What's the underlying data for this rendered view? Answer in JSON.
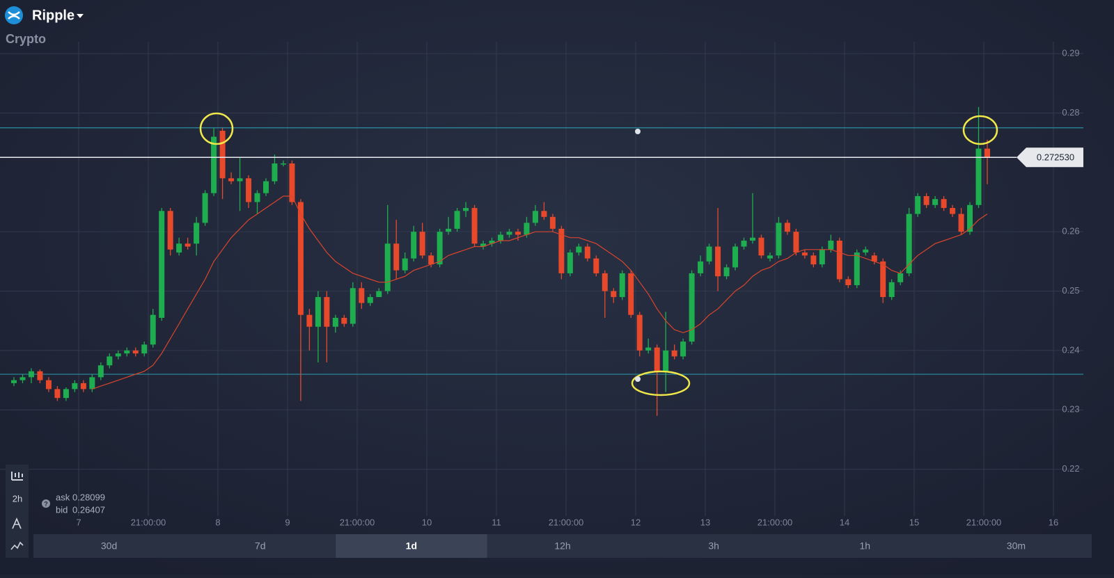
{
  "header": {
    "title": "Ripple",
    "category": "Crypto"
  },
  "chart_data": {
    "type": "candlestick",
    "open": [
      0.2345,
      0.235,
      0.2355,
      0.2365,
      0.235,
      0.2335,
      0.232,
      0.2335,
      0.2345,
      0.2335,
      0.2355,
      0.2375,
      0.239,
      0.2395,
      0.24,
      0.2395,
      0.241,
      0.2455,
      0.2635,
      0.2565,
      0.258,
      0.258,
      0.2615,
      0.2665,
      0.277,
      0.269,
      0.2685,
      0.269,
      0.265,
      0.2665,
      0.2685,
      0.2715,
      0.2715,
      0.265,
      0.246,
      0.244,
      0.249,
      0.244,
      0.2455,
      0.2445,
      0.2505,
      0.248,
      0.249,
      0.25,
      0.258,
      0.2535,
      0.2555,
      0.26,
      0.256,
      0.2545,
      0.26,
      0.2605,
      0.2635,
      0.264,
      0.2575,
      0.258,
      0.2585,
      0.2595,
      0.26,
      0.2595,
      0.2615,
      0.2635,
      0.2625,
      0.2605,
      0.253,
      0.2565,
      0.2575,
      0.2555,
      0.253,
      0.25,
      0.249,
      0.253,
      0.246,
      0.24,
      0.2405,
      0.2365,
      0.24,
      0.239,
      0.2415,
      0.253,
      0.255,
      0.2575,
      0.2525,
      0.254,
      0.2575,
      0.2585,
      0.259,
      0.2555,
      0.256,
      0.2615,
      0.26,
      0.2565,
      0.256,
      0.2545,
      0.257,
      0.2585,
      0.252,
      0.251,
      0.2565,
      0.256,
      0.255,
      0.249,
      0.2515,
      0.253,
      0.263,
      0.266,
      0.2645,
      0.2655,
      0.264,
      0.263,
      0.26,
      0.2645,
      0.274
    ],
    "high": [
      0.2355,
      0.236,
      0.237,
      0.2368,
      0.2355,
      0.234,
      0.2338,
      0.235,
      0.235,
      0.236,
      0.238,
      0.2395,
      0.24,
      0.2405,
      0.2405,
      0.2415,
      0.247,
      0.264,
      0.264,
      0.259,
      0.259,
      0.2625,
      0.267,
      0.2775,
      0.2775,
      0.27,
      0.2725,
      0.2695,
      0.267,
      0.269,
      0.273,
      0.272,
      0.272,
      0.2655,
      0.247,
      0.25,
      0.25,
      0.246,
      0.246,
      0.2515,
      0.2515,
      0.2495,
      0.2505,
      0.2645,
      0.262,
      0.2565,
      0.261,
      0.2615,
      0.2565,
      0.2605,
      0.2625,
      0.264,
      0.265,
      0.2645,
      0.2585,
      0.259,
      0.26,
      0.2605,
      0.2605,
      0.2625,
      0.2645,
      0.265,
      0.263,
      0.261,
      0.257,
      0.258,
      0.258,
      0.256,
      0.2535,
      0.2505,
      0.2535,
      0.2535,
      0.2465,
      0.242,
      0.241,
      0.2465,
      0.241,
      0.242,
      0.2535,
      0.256,
      0.258,
      0.264,
      0.2545,
      0.258,
      0.259,
      0.2665,
      0.2595,
      0.2565,
      0.2625,
      0.262,
      0.2605,
      0.257,
      0.2565,
      0.2575,
      0.2595,
      0.259,
      0.2525,
      0.257,
      0.2575,
      0.2565,
      0.2555,
      0.252,
      0.2535,
      0.264,
      0.2665,
      0.2665,
      0.266,
      0.266,
      0.2645,
      0.264,
      0.265,
      0.281,
      0.2755
    ],
    "low": [
      0.234,
      0.2345,
      0.2345,
      0.2345,
      0.233,
      0.2315,
      0.2315,
      0.233,
      0.233,
      0.233,
      0.235,
      0.237,
      0.2385,
      0.239,
      0.239,
      0.239,
      0.2405,
      0.245,
      0.256,
      0.256,
      0.257,
      0.256,
      0.261,
      0.266,
      0.2655,
      0.268,
      0.2635,
      0.264,
      0.263,
      0.266,
      0.268,
      0.271,
      0.2645,
      0.2315,
      0.24,
      0.238,
      0.238,
      0.243,
      0.244,
      0.244,
      0.247,
      0.2475,
      0.249,
      0.2495,
      0.252,
      0.253,
      0.255,
      0.2555,
      0.254,
      0.254,
      0.2595,
      0.26,
      0.2625,
      0.2575,
      0.257,
      0.2575,
      0.258,
      0.259,
      0.2585,
      0.259,
      0.261,
      0.262,
      0.26,
      0.252,
      0.2525,
      0.256,
      0.255,
      0.2525,
      0.2455,
      0.248,
      0.2485,
      0.2455,
      0.239,
      0.2395,
      0.229,
      0.233,
      0.2385,
      0.2385,
      0.241,
      0.2525,
      0.2545,
      0.25,
      0.252,
      0.2535,
      0.257,
      0.258,
      0.2555,
      0.255,
      0.2555,
      0.2595,
      0.256,
      0.2555,
      0.254,
      0.254,
      0.2565,
      0.2515,
      0.2505,
      0.2505,
      0.256,
      0.2545,
      0.248,
      0.2485,
      0.251,
      0.2525,
      0.2625,
      0.264,
      0.264,
      0.2635,
      0.2625,
      0.2595,
      0.2595,
      0.264,
      0.268
    ],
    "close": [
      0.235,
      0.2355,
      0.2365,
      0.235,
      0.2335,
      0.232,
      0.2335,
      0.2345,
      0.2335,
      0.2355,
      0.2375,
      0.239,
      0.2395,
      0.24,
      0.2395,
      0.241,
      0.246,
      0.2635,
      0.257,
      0.258,
      0.2575,
      0.2615,
      0.2665,
      0.276,
      0.269,
      0.2685,
      0.269,
      0.265,
      0.2665,
      0.2685,
      0.2715,
      0.2715,
      0.265,
      0.246,
      0.244,
      0.249,
      0.244,
      0.2455,
      0.2445,
      0.2505,
      0.248,
      0.249,
      0.25,
      0.258,
      0.2535,
      0.2555,
      0.26,
      0.256,
      0.2545,
      0.26,
      0.2605,
      0.2635,
      0.264,
      0.258,
      0.258,
      0.2585,
      0.2595,
      0.26,
      0.2595,
      0.2615,
      0.2635,
      0.2625,
      0.2605,
      0.253,
      0.2565,
      0.2575,
      0.2555,
      0.253,
      0.25,
      0.249,
      0.253,
      0.246,
      0.24,
      0.2405,
      0.2365,
      0.24,
      0.239,
      0.2415,
      0.253,
      0.255,
      0.2575,
      0.2525,
      0.254,
      0.2575,
      0.2585,
      0.259,
      0.256,
      0.256,
      0.2615,
      0.26,
      0.2565,
      0.256,
      0.2545,
      0.257,
      0.2585,
      0.252,
      0.251,
      0.2565,
      0.257,
      0.255,
      0.249,
      0.2515,
      0.253,
      0.263,
      0.266,
      0.2645,
      0.2655,
      0.264,
      0.263,
      0.26,
      0.2645,
      0.274,
      0.2725
    ],
    "up_color": "#1fae4f",
    "down_color": "#e8492a",
    "series": [
      {
        "color": "#d9452c",
        "values": [
          null,
          null,
          null,
          null,
          null,
          null,
          null,
          null,
          null,
          0.2335,
          0.234,
          0.2345,
          0.235,
          0.2355,
          0.236,
          0.2365,
          0.2375,
          0.2395,
          0.242,
          0.2445,
          0.247,
          0.2495,
          0.252,
          0.255,
          0.257,
          0.259,
          0.2605,
          0.262,
          0.263,
          0.264,
          0.265,
          0.266,
          0.266,
          0.263,
          0.2605,
          0.2585,
          0.2565,
          0.255,
          0.254,
          0.253,
          0.2525,
          0.252,
          0.2515,
          0.2515,
          0.252,
          0.2525,
          0.2535,
          0.254,
          0.2545,
          0.255,
          0.256,
          0.2565,
          0.257,
          0.2575,
          0.2575,
          0.258,
          0.2585,
          0.2585,
          0.259,
          0.2595,
          0.26,
          0.26,
          0.26,
          0.2595,
          0.259,
          0.259,
          0.2585,
          0.258,
          0.257,
          0.256,
          0.255,
          0.2535,
          0.2515,
          0.2495,
          0.247,
          0.245,
          0.2435,
          0.243,
          0.2435,
          0.2445,
          0.246,
          0.247,
          0.2485,
          0.25,
          0.251,
          0.2525,
          0.2535,
          0.254,
          0.255,
          0.2555,
          0.2565,
          0.257,
          0.257,
          0.257,
          0.257,
          0.2565,
          0.256,
          0.256,
          0.2555,
          0.255,
          0.2545,
          0.2535,
          0.253,
          0.2545,
          0.256,
          0.257,
          0.258,
          0.2585,
          0.259,
          0.2595,
          0.2605,
          0.262,
          0.263
        ]
      }
    ],
    "ylim": [
      0.21,
      0.292
    ],
    "yticks": [
      0.22,
      0.23,
      0.24,
      0.25,
      0.26,
      0.28,
      0.29
    ],
    "xticks": [
      7,
      "21:00:00",
      8,
      9,
      "21:00:00",
      10,
      11,
      "21:00:00",
      12,
      13,
      "21:00:00",
      14,
      15,
      "21:00:00",
      16
    ],
    "grid": true,
    "levels": [
      0.2775,
      0.236
    ],
    "level_color": "#2a8fa3",
    "current_price": {
      "value": 0.27253,
      "label": "0.272530"
    }
  },
  "quote": {
    "ask_label": "ask",
    "ask": "0.28099",
    "bid_label": "bid",
    "bid": "0.26407"
  },
  "toolbar": {
    "timeframe": "2h"
  },
  "periods": {
    "items": [
      "30d",
      "7d",
      "1d",
      "12h",
      "3h",
      "1h",
      "30m"
    ],
    "active": 2
  }
}
